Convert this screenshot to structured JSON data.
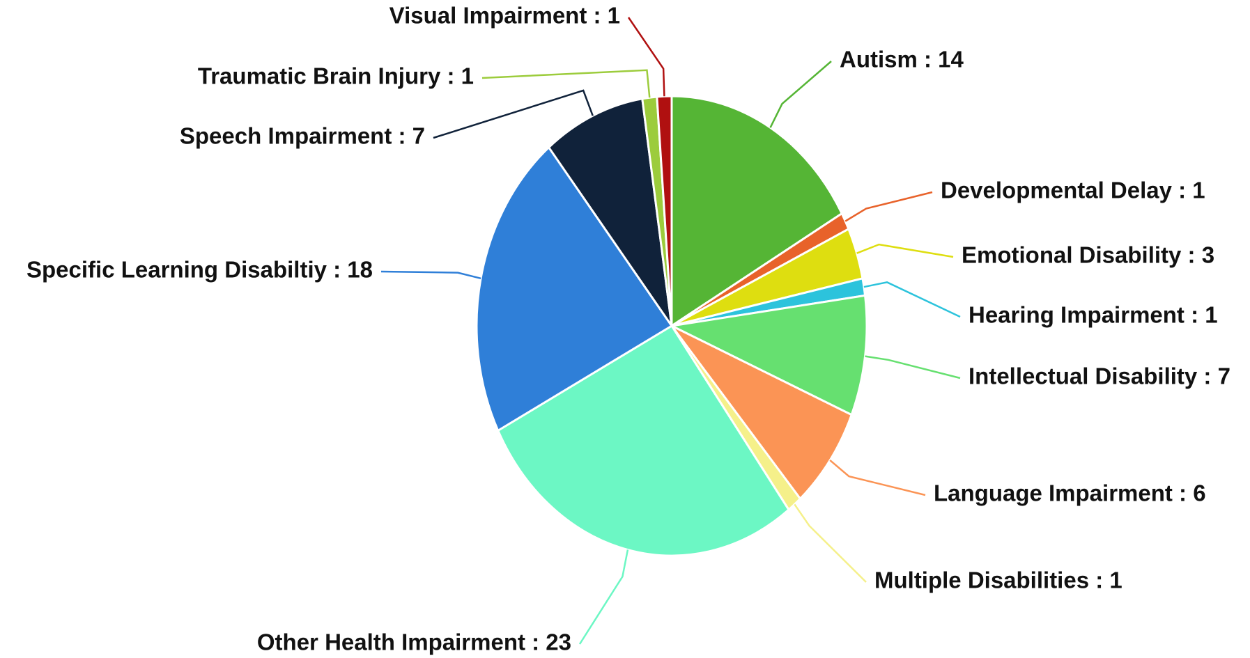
{
  "chart_data": {
    "type": "pie",
    "value_labels": [
      "Autism : 14",
      "Developmental Delay : 1",
      "Emotional Disability : 3",
      "Hearing Impairment : 1",
      "Intellectual Disability : 7",
      "Language Impairment : 6",
      "Multiple Disabilities : 1",
      "Other Health Impairment : 23",
      "Specific Learning Disabiltiy : 18",
      "Speech Impairment : 7",
      "Traumatic Brain Injury : 1",
      "Visual Impairment : 1"
    ],
    "values": [
      14,
      1,
      3,
      1,
      7,
      6,
      1,
      23,
      18,
      7,
      1,
      1
    ],
    "colors": [
      "#55b535",
      "#e8622a",
      "#dede10",
      "#2cc3dc",
      "#66e070",
      "#fb9455",
      "#f5f08a",
      "#6cf7c4",
      "#2f7fd8",
      "#10223a",
      "#9ccc3c",
      "#b01010"
    ]
  }
}
